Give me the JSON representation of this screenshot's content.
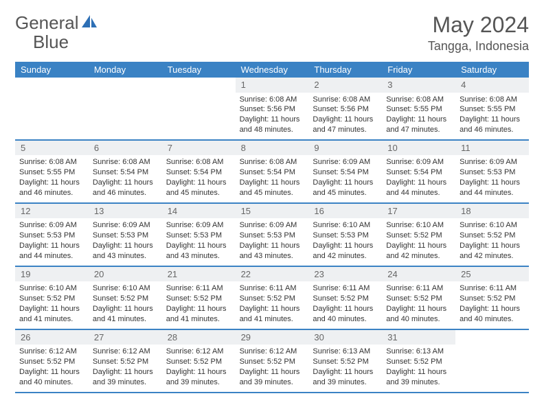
{
  "logo": {
    "text1": "General",
    "text2": "Blue"
  },
  "colors": {
    "header_bg": "#3a82c4",
    "header_text": "#ffffff",
    "daynum_bg": "#eef0f2",
    "daynum_text": "#666666",
    "body_text": "#333333",
    "title_text": "#555555",
    "logo_blue": "#2d6fb5"
  },
  "title": "May 2024",
  "location": "Tangga, Indonesia",
  "weekdays": [
    "Sunday",
    "Monday",
    "Tuesday",
    "Wednesday",
    "Thursday",
    "Friday",
    "Saturday"
  ],
  "weeks": [
    [
      {
        "n": "",
        "sr": "",
        "ss": "",
        "dl": ""
      },
      {
        "n": "",
        "sr": "",
        "ss": "",
        "dl": ""
      },
      {
        "n": "",
        "sr": "",
        "ss": "",
        "dl": ""
      },
      {
        "n": "1",
        "sr": "Sunrise: 6:08 AM",
        "ss": "Sunset: 5:56 PM",
        "dl": "Daylight: 11 hours and 48 minutes."
      },
      {
        "n": "2",
        "sr": "Sunrise: 6:08 AM",
        "ss": "Sunset: 5:56 PM",
        "dl": "Daylight: 11 hours and 47 minutes."
      },
      {
        "n": "3",
        "sr": "Sunrise: 6:08 AM",
        "ss": "Sunset: 5:55 PM",
        "dl": "Daylight: 11 hours and 47 minutes."
      },
      {
        "n": "4",
        "sr": "Sunrise: 6:08 AM",
        "ss": "Sunset: 5:55 PM",
        "dl": "Daylight: 11 hours and 46 minutes."
      }
    ],
    [
      {
        "n": "5",
        "sr": "Sunrise: 6:08 AM",
        "ss": "Sunset: 5:55 PM",
        "dl": "Daylight: 11 hours and 46 minutes."
      },
      {
        "n": "6",
        "sr": "Sunrise: 6:08 AM",
        "ss": "Sunset: 5:54 PM",
        "dl": "Daylight: 11 hours and 46 minutes."
      },
      {
        "n": "7",
        "sr": "Sunrise: 6:08 AM",
        "ss": "Sunset: 5:54 PM",
        "dl": "Daylight: 11 hours and 45 minutes."
      },
      {
        "n": "8",
        "sr": "Sunrise: 6:08 AM",
        "ss": "Sunset: 5:54 PM",
        "dl": "Daylight: 11 hours and 45 minutes."
      },
      {
        "n": "9",
        "sr": "Sunrise: 6:09 AM",
        "ss": "Sunset: 5:54 PM",
        "dl": "Daylight: 11 hours and 45 minutes."
      },
      {
        "n": "10",
        "sr": "Sunrise: 6:09 AM",
        "ss": "Sunset: 5:54 PM",
        "dl": "Daylight: 11 hours and 44 minutes."
      },
      {
        "n": "11",
        "sr": "Sunrise: 6:09 AM",
        "ss": "Sunset: 5:53 PM",
        "dl": "Daylight: 11 hours and 44 minutes."
      }
    ],
    [
      {
        "n": "12",
        "sr": "Sunrise: 6:09 AM",
        "ss": "Sunset: 5:53 PM",
        "dl": "Daylight: 11 hours and 44 minutes."
      },
      {
        "n": "13",
        "sr": "Sunrise: 6:09 AM",
        "ss": "Sunset: 5:53 PM",
        "dl": "Daylight: 11 hours and 43 minutes."
      },
      {
        "n": "14",
        "sr": "Sunrise: 6:09 AM",
        "ss": "Sunset: 5:53 PM",
        "dl": "Daylight: 11 hours and 43 minutes."
      },
      {
        "n": "15",
        "sr": "Sunrise: 6:09 AM",
        "ss": "Sunset: 5:53 PM",
        "dl": "Daylight: 11 hours and 43 minutes."
      },
      {
        "n": "16",
        "sr": "Sunrise: 6:10 AM",
        "ss": "Sunset: 5:53 PM",
        "dl": "Daylight: 11 hours and 42 minutes."
      },
      {
        "n": "17",
        "sr": "Sunrise: 6:10 AM",
        "ss": "Sunset: 5:52 PM",
        "dl": "Daylight: 11 hours and 42 minutes."
      },
      {
        "n": "18",
        "sr": "Sunrise: 6:10 AM",
        "ss": "Sunset: 5:52 PM",
        "dl": "Daylight: 11 hours and 42 minutes."
      }
    ],
    [
      {
        "n": "19",
        "sr": "Sunrise: 6:10 AM",
        "ss": "Sunset: 5:52 PM",
        "dl": "Daylight: 11 hours and 41 minutes."
      },
      {
        "n": "20",
        "sr": "Sunrise: 6:10 AM",
        "ss": "Sunset: 5:52 PM",
        "dl": "Daylight: 11 hours and 41 minutes."
      },
      {
        "n": "21",
        "sr": "Sunrise: 6:11 AM",
        "ss": "Sunset: 5:52 PM",
        "dl": "Daylight: 11 hours and 41 minutes."
      },
      {
        "n": "22",
        "sr": "Sunrise: 6:11 AM",
        "ss": "Sunset: 5:52 PM",
        "dl": "Daylight: 11 hours and 41 minutes."
      },
      {
        "n": "23",
        "sr": "Sunrise: 6:11 AM",
        "ss": "Sunset: 5:52 PM",
        "dl": "Daylight: 11 hours and 40 minutes."
      },
      {
        "n": "24",
        "sr": "Sunrise: 6:11 AM",
        "ss": "Sunset: 5:52 PM",
        "dl": "Daylight: 11 hours and 40 minutes."
      },
      {
        "n": "25",
        "sr": "Sunrise: 6:11 AM",
        "ss": "Sunset: 5:52 PM",
        "dl": "Daylight: 11 hours and 40 minutes."
      }
    ],
    [
      {
        "n": "26",
        "sr": "Sunrise: 6:12 AM",
        "ss": "Sunset: 5:52 PM",
        "dl": "Daylight: 11 hours and 40 minutes."
      },
      {
        "n": "27",
        "sr": "Sunrise: 6:12 AM",
        "ss": "Sunset: 5:52 PM",
        "dl": "Daylight: 11 hours and 39 minutes."
      },
      {
        "n": "28",
        "sr": "Sunrise: 6:12 AM",
        "ss": "Sunset: 5:52 PM",
        "dl": "Daylight: 11 hours and 39 minutes."
      },
      {
        "n": "29",
        "sr": "Sunrise: 6:12 AM",
        "ss": "Sunset: 5:52 PM",
        "dl": "Daylight: 11 hours and 39 minutes."
      },
      {
        "n": "30",
        "sr": "Sunrise: 6:13 AM",
        "ss": "Sunset: 5:52 PM",
        "dl": "Daylight: 11 hours and 39 minutes."
      },
      {
        "n": "31",
        "sr": "Sunrise: 6:13 AM",
        "ss": "Sunset: 5:52 PM",
        "dl": "Daylight: 11 hours and 39 minutes."
      },
      {
        "n": "",
        "sr": "",
        "ss": "",
        "dl": ""
      }
    ]
  ]
}
